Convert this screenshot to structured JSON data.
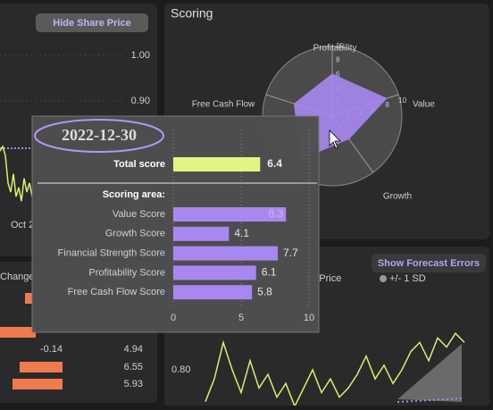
{
  "top_left": {
    "button": "Hide Share Price",
    "yticks": [
      {
        "value": 1,
        "label": "1.00"
      },
      {
        "value": 0.9,
        "label": "0.90"
      }
    ],
    "x_label": "Oct 2",
    "values": [
      0.79,
      0.8,
      0.78,
      0.72,
      0.7,
      0.74,
      0.69,
      0.71,
      0.68,
      0.73,
      0.7,
      0.72,
      0.69
    ]
  },
  "scoring": {
    "title": "Scoring",
    "axis_labels": [
      "Profitability",
      "Value",
      "Growth",
      "Free Cash Flow"
    ],
    "ticks": [
      2,
      4,
      6,
      8,
      10
    ]
  },
  "tooltip": {
    "date": "2022-12-30",
    "total_label": "Total score",
    "total": 6.4,
    "section": "Scoring area:",
    "categories": [
      "Value Score",
      "Growth Score",
      "Financial Strength Score",
      "Profitability Score",
      "Free Cash Flow Score"
    ],
    "values": [
      8.3,
      4.1,
      7.7,
      6.1,
      5.8
    ],
    "xlim": [
      0,
      10
    ],
    "xticks": [
      0,
      5,
      10
    ]
  },
  "bottom_left": {
    "header": "Change",
    "change": -0.14,
    "scores": [
      4.94,
      6.55,
      5.93
    ]
  },
  "bottom_right": {
    "button": "Show Forecast Errors",
    "legend": [
      "ed Price",
      "+/- 1 SD"
    ],
    "yticks": [
      {
        "value": 0.8,
        "label": "0.80"
      }
    ],
    "values": [
      0.73,
      0.78,
      0.86,
      0.8,
      0.75,
      0.82,
      0.76,
      0.79,
      0.74,
      0.77,
      0.72,
      0.76,
      0.8,
      0.75,
      0.78,
      0.74,
      0.76,
      0.79,
      0.83,
      0.78,
      0.81,
      0.77,
      0.8,
      0.84,
      0.86,
      0.82,
      0.87,
      0.85,
      0.88,
      0.86
    ]
  }
}
